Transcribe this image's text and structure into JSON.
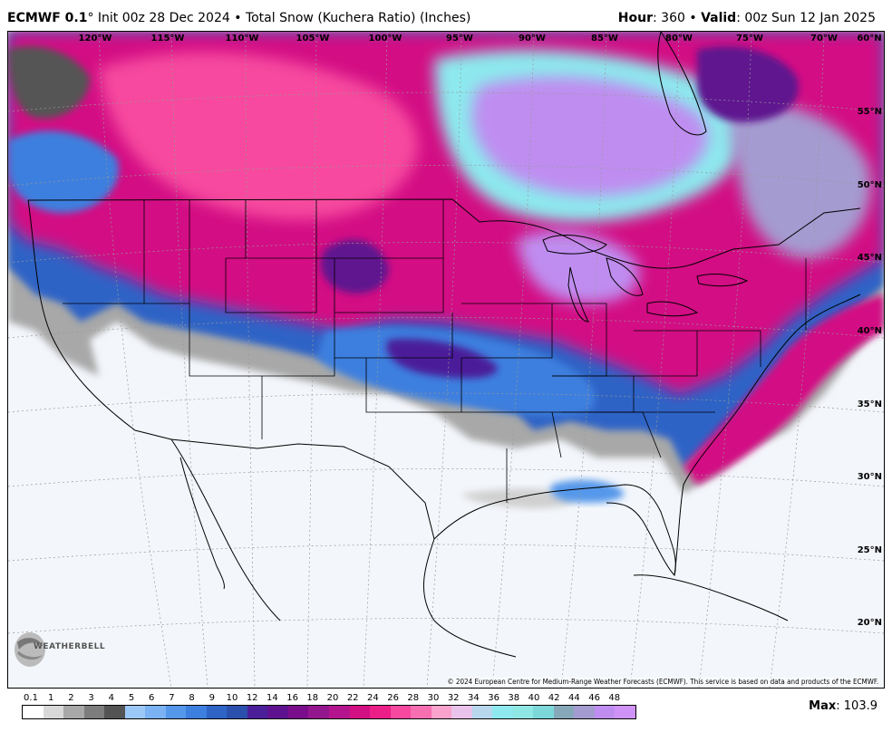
{
  "header": {
    "model": "ECMWF 0.1",
    "degree": "°",
    "init": " Init 00z 28 Dec 2024 • Total Snow (Kuchera Ratio) (Inches)",
    "hour_label": "Hour",
    "hour_value": ": 360 • ",
    "valid_label": "Valid",
    "valid_value": ": 00z Sun 12 Jan 2025"
  },
  "map": {
    "lon_labels": [
      "120°W",
      "115°W",
      "110°W",
      "105°W",
      "100°W",
      "95°W",
      "90°W",
      "85°W",
      "80°W",
      "75°W",
      "70°W",
      "60°N"
    ],
    "lat_labels": [
      "55°N",
      "50°N",
      "45°N",
      "40°N",
      "35°N",
      "30°N",
      "25°N",
      "20°N"
    ],
    "copyright": "© 2024 European Centre for Medium-Range Weather Forecasts (ECMWF). This service is based on data and products of the ECMWF.",
    "logo_text": "WEATHERBELL"
  },
  "legend": {
    "labels": [
      "0.1",
      "1",
      "2",
      "3",
      "4",
      "5",
      "6",
      "7",
      "8",
      "9",
      "10",
      "12",
      "14",
      "16",
      "18",
      "20",
      "22",
      "24",
      "26",
      "28",
      "30",
      "32",
      "34",
      "36",
      "38",
      "40",
      "42",
      "44",
      "46",
      "48"
    ],
    "colors": [
      "#ffffff",
      "#d8d8d8",
      "#a8a8a8",
      "#7d7d7d",
      "#545454",
      "#9cc8f7",
      "#7ab2f3",
      "#5597ea",
      "#3d7fde",
      "#2e64c6",
      "#2a4fac",
      "#4b1f9a",
      "#5f128f",
      "#7a0d8c",
      "#94168f",
      "#b4158e",
      "#d30f84",
      "#ec1f88",
      "#f6489f",
      "#f86fb1",
      "#f8a2cc",
      "#eac3ea",
      "#b8d6ec",
      "#8de9ee",
      "#8fe7e4",
      "#7cd7d9",
      "#86a8b8",
      "#a49bd0",
      "#bf8df0",
      "#cf92f7"
    ],
    "max_label": "Max",
    "max_value": ": 103.9"
  }
}
